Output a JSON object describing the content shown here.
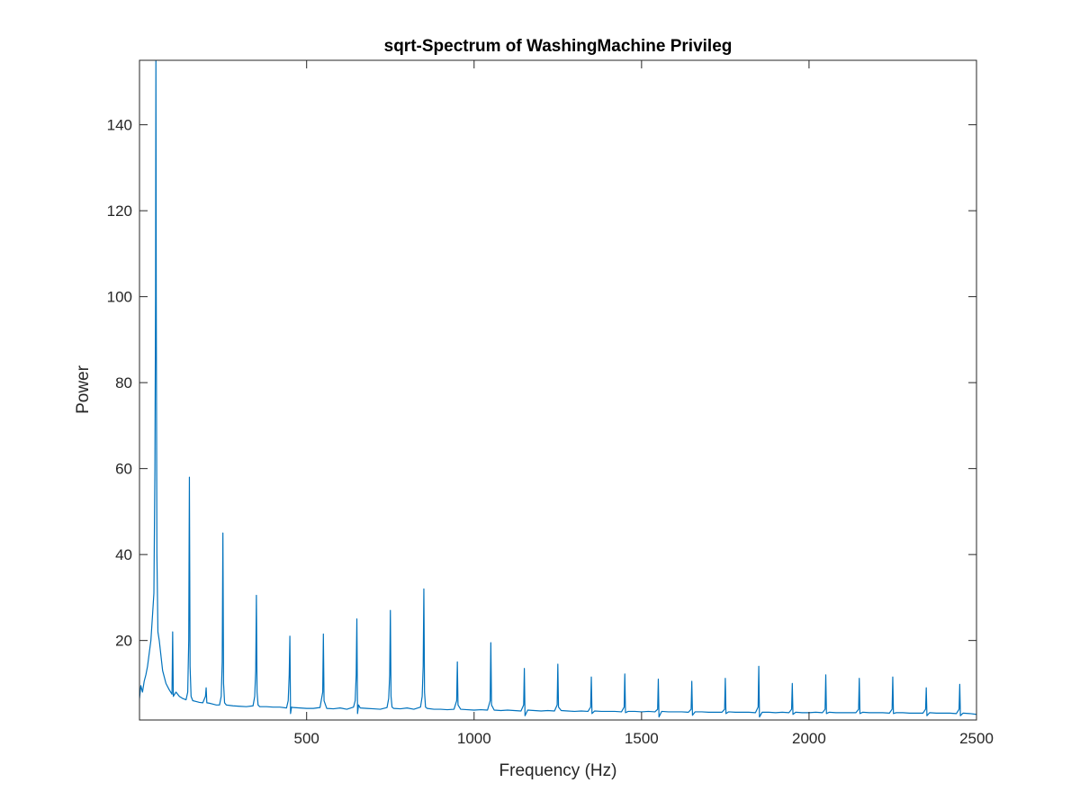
{
  "chart_data": {
    "type": "line",
    "title": "sqrt-Spectrum of WashingMachine Privileg",
    "xlabel": "Frequency (Hz)",
    "ylabel": "Power",
    "xlim": [
      1,
      2500
    ],
    "ylim": [
      1.5,
      155
    ],
    "x_ticks": [
      500,
      1000,
      1500,
      2000,
      2500
    ],
    "y_ticks": [
      20,
      40,
      60,
      80,
      100,
      120,
      140
    ],
    "x_tick_labels": [
      "500",
      "1000",
      "1500",
      "2000",
      "2500"
    ],
    "y_tick_labels": [
      "20",
      "40",
      "60",
      "80",
      "100",
      "120",
      "140"
    ],
    "grid": false,
    "line_color": "#0072BD",
    "series": [
      {
        "x": [
          1,
          5,
          10,
          15,
          20,
          25,
          30,
          35,
          40,
          44,
          47,
          49,
          50,
          51,
          53,
          56,
          60,
          70,
          80,
          90,
          98,
          100,
          102,
          110,
          120,
          130,
          140,
          145,
          148,
          150,
          152,
          155,
          160,
          170,
          180,
          190,
          198,
          200,
          202,
          210,
          220,
          230,
          240,
          245,
          248,
          250,
          252,
          255,
          260,
          280,
          300,
          320,
          340,
          345,
          348,
          350,
          352,
          355,
          360,
          380,
          400,
          420,
          440,
          445,
          448,
          450,
          452,
          455,
          460,
          480,
          500,
          520,
          540,
          548,
          550,
          552,
          560,
          580,
          600,
          620,
          640,
          645,
          648,
          650,
          652,
          655,
          660,
          680,
          700,
          720,
          740,
          745,
          748,
          750,
          752,
          755,
          760,
          780,
          800,
          820,
          840,
          845,
          848,
          850,
          852,
          855,
          860,
          880,
          900,
          920,
          940,
          948,
          950,
          952,
          960,
          980,
          1000,
          1020,
          1040,
          1048,
          1050,
          1052,
          1060,
          1080,
          1100,
          1120,
          1140,
          1148,
          1150,
          1152,
          1160,
          1180,
          1200,
          1220,
          1240,
          1248,
          1250,
          1252,
          1260,
          1280,
          1300,
          1320,
          1340,
          1348,
          1350,
          1352,
          1360,
          1380,
          1400,
          1420,
          1440,
          1448,
          1450,
          1452,
          1460,
          1480,
          1500,
          1520,
          1540,
          1548,
          1550,
          1552,
          1560,
          1580,
          1600,
          1620,
          1640,
          1648,
          1650,
          1652,
          1660,
          1680,
          1700,
          1720,
          1740,
          1748,
          1750,
          1752,
          1760,
          1780,
          1800,
          1820,
          1840,
          1848,
          1850,
          1852,
          1860,
          1880,
          1900,
          1920,
          1940,
          1948,
          1950,
          1952,
          1960,
          1980,
          2000,
          2020,
          2040,
          2048,
          2050,
          2052,
          2060,
          2080,
          2100,
          2120,
          2140,
          2148,
          2150,
          2152,
          2160,
          2180,
          2200,
          2220,
          2240,
          2248,
          2250,
          2252,
          2260,
          2280,
          2300,
          2320,
          2340,
          2348,
          2350,
          2352,
          2360,
          2380,
          2400,
          2420,
          2440,
          2448,
          2450,
          2452,
          2460,
          2480,
          2500
        ],
        "y": [
          6.5,
          9.5,
          8.0,
          10.5,
          12.0,
          14.0,
          17.0,
          20.0,
          26.0,
          31.0,
          60.0,
          100.0,
          156.0,
          100.0,
          40.0,
          22.0,
          20.0,
          13.0,
          10.0,
          8.5,
          7.5,
          22.0,
          7.0,
          8.0,
          7.0,
          6.5,
          6.2,
          8.0,
          20.0,
          58.0,
          14.0,
          7.0,
          6.0,
          5.8,
          5.6,
          5.5,
          7.0,
          9.0,
          5.5,
          5.4,
          5.2,
          5.0,
          5.0,
          7.0,
          15.0,
          45.0,
          10.0,
          5.5,
          5.0,
          4.8,
          4.7,
          4.6,
          4.8,
          7.0,
          13.0,
          30.5,
          8.0,
          5.0,
          4.6,
          4.6,
          4.5,
          4.5,
          4.3,
          6.0,
          12.0,
          21.0,
          3.0,
          4.5,
          4.4,
          4.3,
          4.2,
          4.2,
          4.4,
          8.0,
          21.5,
          6.0,
          4.2,
          4.1,
          4.3,
          4.0,
          4.5,
          6.0,
          12.0,
          25.0,
          3.0,
          5.0,
          4.3,
          4.2,
          4.1,
          4.0,
          4.4,
          6.5,
          12.0,
          27.0,
          7.0,
          4.5,
          4.2,
          4.1,
          4.3,
          4.0,
          4.5,
          7.0,
          14.0,
          32.0,
          8.0,
          4.5,
          4.2,
          4.0,
          4.0,
          3.9,
          4.0,
          6.0,
          15.0,
          5.0,
          4.0,
          3.9,
          3.8,
          3.9,
          3.8,
          6.0,
          19.5,
          5.0,
          3.8,
          3.7,
          3.8,
          3.7,
          3.6,
          5.0,
          13.5,
          2.5,
          3.8,
          3.7,
          3.6,
          3.7,
          3.6,
          5.0,
          14.5,
          4.5,
          3.7,
          3.6,
          3.5,
          3.6,
          3.5,
          4.5,
          11.5,
          3.0,
          3.6,
          3.5,
          3.5,
          3.5,
          3.4,
          4.5,
          12.2,
          3.2,
          3.5,
          3.5,
          3.4,
          3.5,
          3.4,
          4.0,
          11.0,
          2.2,
          3.5,
          3.4,
          3.4,
          3.4,
          3.3,
          4.0,
          10.5,
          2.6,
          3.4,
          3.4,
          3.3,
          3.3,
          3.3,
          4.0,
          11.2,
          3.0,
          3.4,
          3.3,
          3.3,
          3.3,
          3.2,
          4.5,
          14.0,
          2.2,
          3.3,
          3.3,
          3.2,
          3.3,
          3.2,
          4.0,
          10.0,
          2.8,
          3.3,
          3.2,
          3.2,
          3.3,
          3.2,
          4.0,
          12.0,
          3.0,
          3.3,
          3.2,
          3.2,
          3.2,
          3.2,
          4.0,
          11.2,
          3.0,
          3.3,
          3.2,
          3.2,
          3.2,
          3.1,
          4.0,
          11.5,
          3.0,
          3.2,
          3.2,
          3.1,
          3.1,
          3.1,
          4.0,
          9.0,
          2.5,
          3.2,
          3.1,
          3.1,
          3.1,
          3.0,
          4.0,
          9.8,
          2.5,
          3.1,
          3.0,
          2.8
        ]
      }
    ]
  }
}
